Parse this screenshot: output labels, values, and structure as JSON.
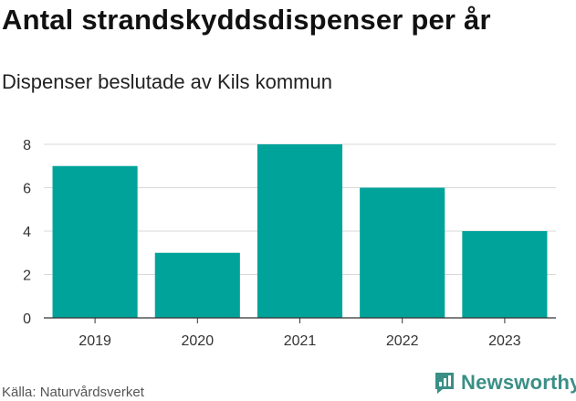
{
  "title": "Antal strandskyddsdispenser per år",
  "subtitle": "Dispenser beslutade av Kils kommun",
  "source": "Källa: Naturvårdsverket",
  "brand": {
    "name": "Newsworthy",
    "icon": "newsworthy-logo-icon"
  },
  "colors": {
    "bar": "#00a39a",
    "grid": "#d9d9d9",
    "axis": "#333333",
    "brand": "#3a8f86"
  },
  "chart_data": {
    "type": "bar",
    "title": "Antal strandskyddsdispenser per år",
    "subtitle": "Dispenser beslutade av Kils kommun",
    "categories": [
      "2019",
      "2020",
      "2021",
      "2022",
      "2023"
    ],
    "values": [
      7,
      3,
      8,
      6,
      4
    ],
    "xlabel": "",
    "ylabel": "",
    "ylim": [
      0,
      8
    ],
    "yticks": [
      0,
      2,
      4,
      6,
      8
    ],
    "grid": true,
    "legend": "none"
  }
}
